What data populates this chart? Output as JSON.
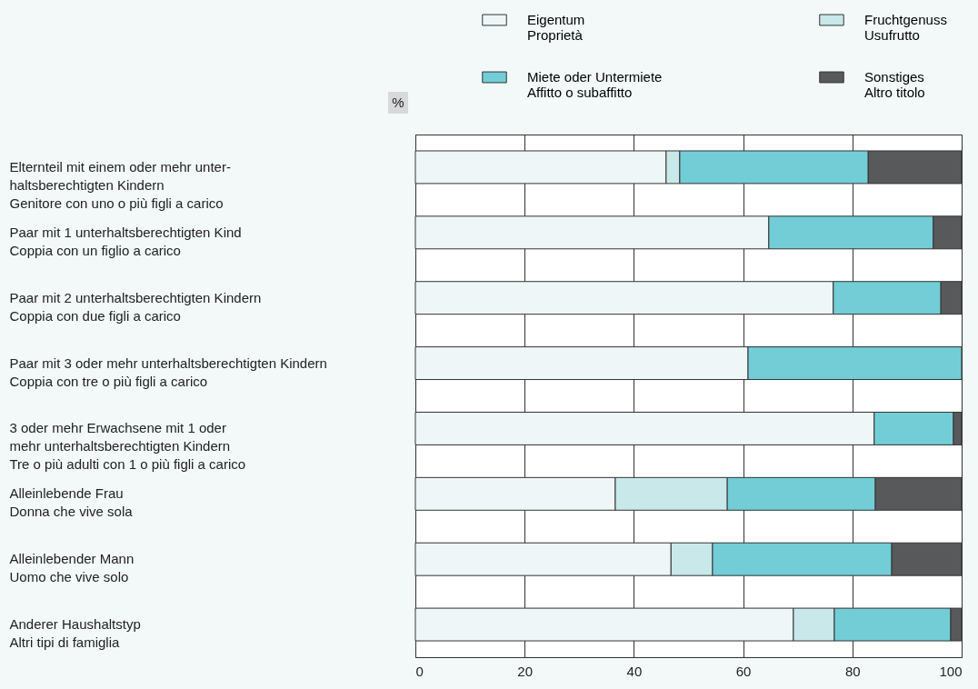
{
  "chart_data": {
    "type": "bar",
    "orientation": "horizontal",
    "stacked": true,
    "xlabel": "%",
    "categories": [
      "Elternteil mit einem oder mehr unter-\nhaltsberechtigten Kindern\nGenitore con uno o più figli a carico",
      "Paar mit 1 unterhaltsberechtigten Kind\nCoppia con un figlio a carico",
      "Paar mit 2 unterhaltsberechtigten Kindern\nCoppia con due figli a carico",
      "Paar mit 3 oder mehr unterhaltsberechtigten Kindern\nCoppia con tre o più figli a carico",
      "3 oder mehr Erwachsene mit 1 oder\nmehr unterhaltsberechtigten Kindern\nTre o più adulti con 1 o più figli a carico",
      "Alleinlebende Frau\nDonna che vive sola",
      "Alleinlebender Mann\nUomo che vive solo",
      "Anderer Haushaltstyp\nAltri tipi di famiglia"
    ],
    "series": [
      {
        "name": "Eigentum\nProprietà",
        "color": "#eef6f7",
        "values": [
          45.9,
          64.7,
          76.5,
          60.9,
          84.0,
          36.6,
          46.8,
          69.2
        ]
      },
      {
        "name": "Fruchtgenuss\nUsufrutto",
        "color": "#c8e8ea",
        "values": [
          2.5,
          0,
          0,
          0,
          0,
          20.5,
          7.6,
          7.5
        ]
      },
      {
        "name": "Miete oder Untermiete\nAffitto o subaffitto",
        "color": "#72cdd6",
        "values": [
          34.5,
          30.1,
          19.7,
          39.1,
          14.5,
          27.1,
          32.8,
          21.3
        ]
      },
      {
        "name": "Sonstiges\nAltro titolo",
        "color": "#58595b",
        "values": [
          17.1,
          5.2,
          3.8,
          0,
          1.5,
          15.8,
          12.8,
          2.0
        ]
      }
    ],
    "xlim": [
      0,
      100
    ],
    "xticks": [
      0,
      20,
      40,
      60,
      80,
      100
    ],
    "grid": "x",
    "legend": "top"
  }
}
